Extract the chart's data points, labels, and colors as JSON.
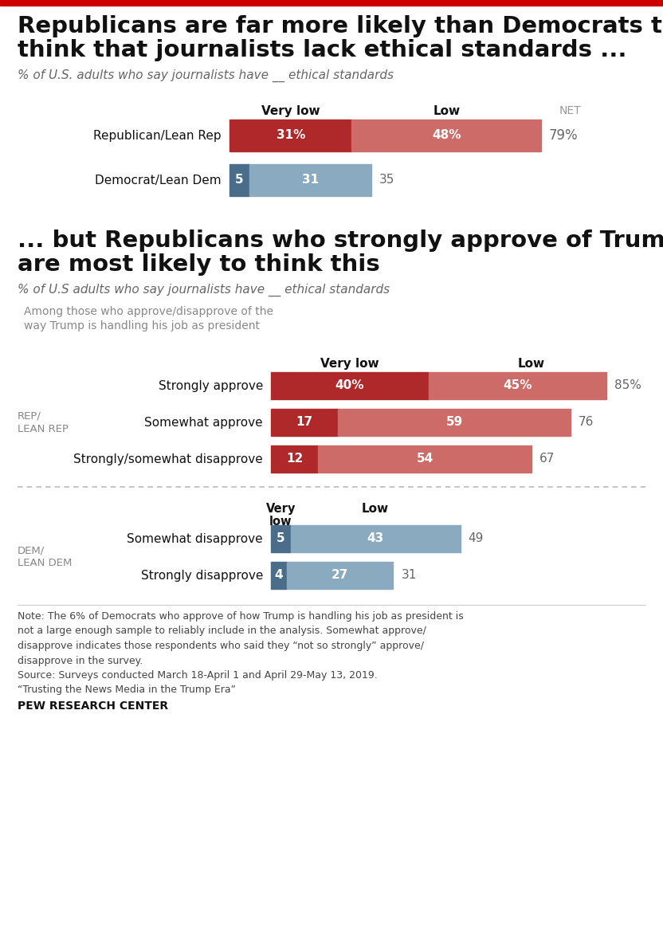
{
  "title1_line1": "Republicans are far more likely than Democrats to",
  "title1_line2": "think that journalists lack ethical standards ...",
  "subtitle1": "% of U.S. adults who say journalists have __ ethical standards",
  "title2_line1": "... but Republicans who strongly approve of Trump",
  "title2_line2": "are most likely to think this",
  "subtitle2": "% of U.S adults who say journalists have __ ethical standards",
  "among_text": "Among those who approve/disapprove of the\nway Trump is handling his job as president",
  "section1": {
    "categories": [
      "Republican/Lean Rep",
      "Democrat/Lean Dem"
    ],
    "very_low": [
      31,
      5
    ],
    "low": [
      48,
      31
    ],
    "net": [
      "79%",
      "35"
    ],
    "very_low_colors": [
      "#b0292a",
      "#4a6e8a"
    ],
    "low_colors": [
      "#cc6b67",
      "#8aaabf"
    ],
    "header_very_low": "Very low",
    "header_low": "Low",
    "header_net": "NET"
  },
  "section2_rep": {
    "group_label": "REP/\nLEAN REP",
    "categories": [
      "Strongly approve",
      "Somewhat approve",
      "Strongly/somewhat disapprove"
    ],
    "very_low": [
      40,
      17,
      12
    ],
    "low": [
      45,
      59,
      54
    ],
    "net": [
      "85%",
      "76",
      "67"
    ],
    "very_low_colors": [
      "#b0292a",
      "#b0292a",
      "#b0292a"
    ],
    "low_colors": [
      "#cc6b67",
      "#cc6b67",
      "#cc6b67"
    ],
    "header_very_low": "Very low",
    "header_low": "Low"
  },
  "section2_dem": {
    "group_label": "DEM/\nLEAN DEM",
    "categories": [
      "Somewhat disapprove",
      "Strongly disapprove"
    ],
    "very_low": [
      5,
      4
    ],
    "low": [
      43,
      27
    ],
    "net": [
      "49",
      "31"
    ],
    "very_low_colors": [
      "#4a6e8a",
      "#4a6e8a"
    ],
    "low_colors": [
      "#8aaabf",
      "#8aaabf"
    ],
    "header_very_low_line1": "Very",
    "header_very_low_line2": "low",
    "header_low": "Low"
  },
  "note_text": "Note: The 6% of Democrats who approve of how Trump is handling his job as president is\nnot a large enough sample to reliably include in the analysis. Somewhat approve/\ndisapprove indicates those respondents who said they “not so strongly” approve/\ndisapprove in the survey.\nSource: Surveys conducted March 18-April 1 and April 29-May 13, 2019.\n“Trusting the News Media in the Trump Era”",
  "source_label": "PEW RESEARCH CENTER",
  "background_color": "#ffffff",
  "top_bar_color": "#cc0000"
}
